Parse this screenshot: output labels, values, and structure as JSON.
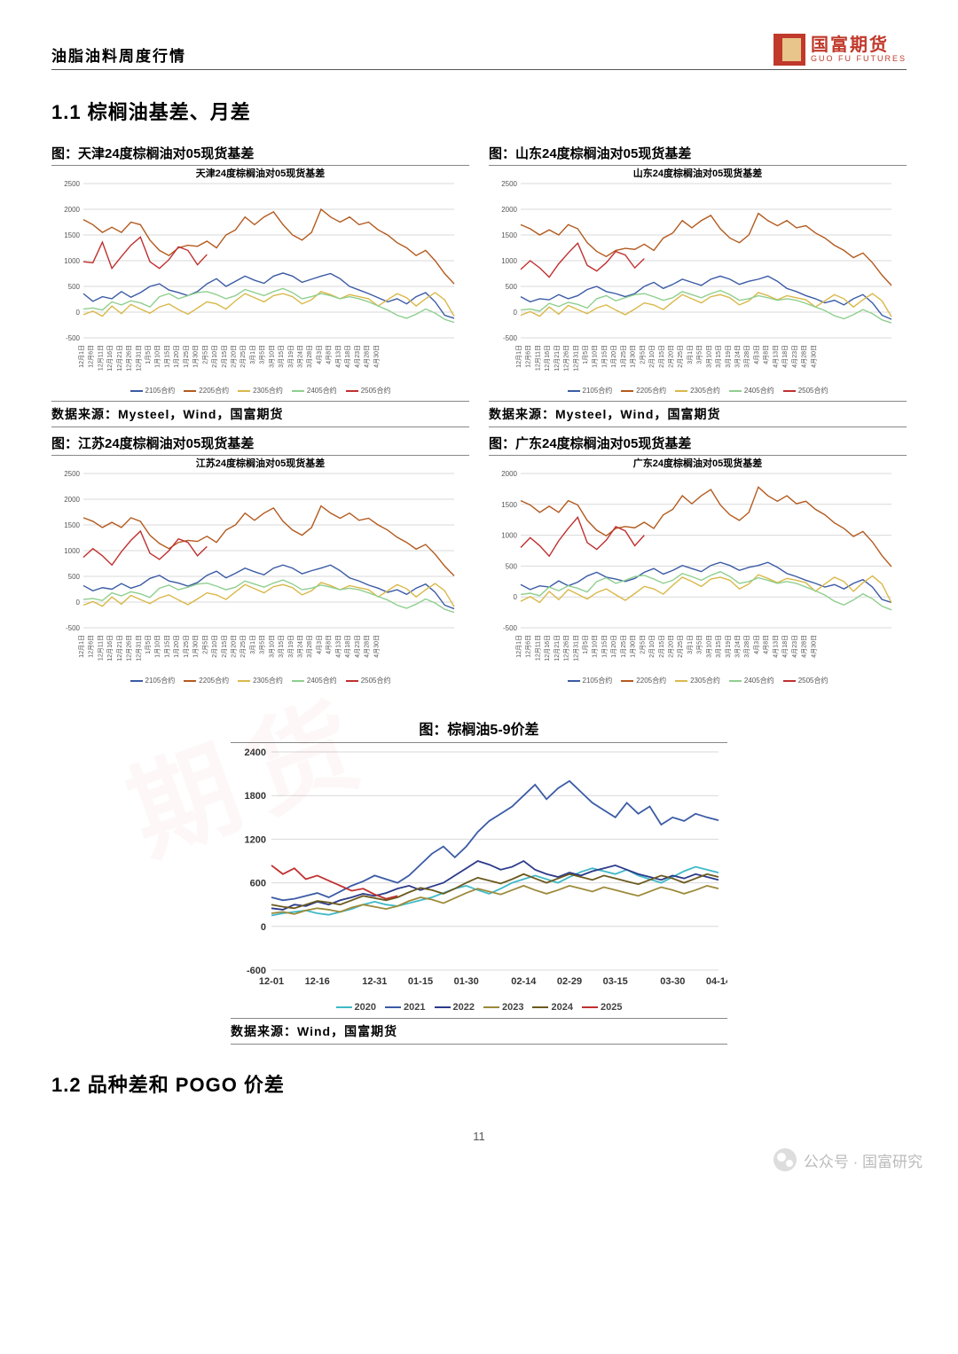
{
  "header": {
    "doc_title": "油脂油料周度行情",
    "logo_cn": "国富期货",
    "logo_en": "GUO FU FUTURES",
    "logo_colors": {
      "red": "#c0392b",
      "tan": "#e8c58a"
    }
  },
  "section1": {
    "heading": "1.1 棕榈油基差、月差"
  },
  "section2": {
    "heading": "1.2 品种差和 POGO 价差"
  },
  "page_number": "11",
  "footer_brand": "公众号 · 国富研究",
  "basis_common": {
    "type": "line",
    "ylim": [
      -500,
      2500
    ],
    "ystep": 500,
    "x_count": 40,
    "x_labels_sample": [
      "12月1日",
      "12月6日",
      "12月11日",
      "12月16日",
      "12月21日",
      "12月26日",
      "12月31日",
      "1月5日",
      "1月10日",
      "1月15日",
      "1月20日",
      "1月25日",
      "1月30日",
      "2月5日",
      "2月10日",
      "2月15日",
      "2月20日",
      "2月25日",
      "3月1日",
      "3月5日",
      "3月10日",
      "3月15日",
      "3月19日",
      "3月24日",
      "3月28日",
      "4月3日",
      "4月8日",
      "4月13日",
      "4月18日",
      "4月23日",
      "4月28日",
      "4月30日",
      "",
      "",
      "",
      "",
      "",
      "",
      "",
      ""
    ],
    "legend": [
      {
        "label": "2105合约",
        "color": "#3b5ba5"
      },
      {
        "label": "2205合约",
        "color": "#b35a1e"
      },
      {
        "label": "2305合约",
        "color": "#d9b84a"
      },
      {
        "label": "2405合约",
        "color": "#8fcf8f"
      },
      {
        "label": "2505合约",
        "color": "#c03030"
      }
    ],
    "grid_color": "#d9d9d9",
    "background": "#ffffff",
    "line_width": 1.4,
    "title_fontsize": 11,
    "source": "数据来源：Mysteel，Wind，国富期货"
  },
  "charts": {
    "tianjin": {
      "caption": "图：天津24度棕榈油对05现货基差",
      "inner_title": "天津24度棕榈油对05现货基差",
      "series": {
        "2105": [
          360,
          210,
          300,
          260,
          400,
          290,
          380,
          500,
          550,
          430,
          380,
          320,
          400,
          550,
          650,
          500,
          600,
          700,
          620,
          560,
          700,
          760,
          700,
          580,
          640,
          700,
          750,
          650,
          500,
          430,
          360,
          280,
          200,
          260,
          160,
          300,
          380,
          200,
          -60,
          -120
        ],
        "2205": [
          1800,
          1700,
          1550,
          1650,
          1550,
          1750,
          1700,
          1400,
          1200,
          1100,
          1250,
          1300,
          1280,
          1380,
          1250,
          1500,
          1600,
          1850,
          1700,
          1850,
          1950,
          1700,
          1500,
          1400,
          1550,
          2000,
          1850,
          1750,
          1850,
          1700,
          1750,
          1600,
          1500,
          1350,
          1250,
          1100,
          1200,
          1000,
          750,
          550
        ],
        "2305": [
          -50,
          20,
          -80,
          120,
          -30,
          150,
          60,
          -20,
          100,
          160,
          50,
          -40,
          80,
          200,
          160,
          60,
          220,
          360,
          280,
          200,
          320,
          360,
          300,
          160,
          240,
          400,
          340,
          260,
          340,
          300,
          260,
          120,
          240,
          360,
          280,
          120,
          260,
          380,
          240,
          -80
        ],
        "2405": [
          60,
          80,
          40,
          200,
          140,
          220,
          180,
          100,
          300,
          360,
          260,
          320,
          380,
          400,
          340,
          260,
          320,
          440,
          380,
          320,
          400,
          460,
          380,
          260,
          300,
          360,
          320,
          260,
          300,
          260,
          200,
          120,
          40,
          -60,
          -120,
          -40,
          60,
          -20,
          -140,
          -200
        ],
        "2505": [
          980,
          960,
          1360,
          850,
          1080,
          1300,
          1460,
          980,
          850,
          1020,
          1270,
          1200,
          920,
          1120
        ]
      }
    },
    "shandong": {
      "caption": "图：山东24度棕榈油对05现货基差",
      "inner_title": "山东24度棕榈油对05现货基差",
      "series": {
        "2105": [
          300,
          200,
          260,
          240,
          340,
          260,
          320,
          440,
          500,
          400,
          360,
          300,
          360,
          500,
          580,
          460,
          540,
          640,
          580,
          520,
          640,
          700,
          640,
          540,
          600,
          640,
          700,
          600,
          460,
          400,
          320,
          260,
          180,
          230,
          140,
          260,
          340,
          180,
          -60,
          -140
        ],
        "2205": [
          1700,
          1620,
          1500,
          1600,
          1500,
          1700,
          1620,
          1350,
          1180,
          1080,
          1200,
          1240,
          1220,
          1320,
          1200,
          1440,
          1540,
          1780,
          1640,
          1780,
          1880,
          1620,
          1440,
          1350,
          1500,
          1920,
          1780,
          1680,
          1780,
          1640,
          1680,
          1540,
          1440,
          1300,
          1200,
          1060,
          1150,
          960,
          720,
          520
        ],
        "2305": [
          -60,
          10,
          -80,
          100,
          -40,
          130,
          50,
          -30,
          80,
          140,
          40,
          -50,
          60,
          180,
          140,
          50,
          200,
          340,
          260,
          180,
          300,
          340,
          280,
          140,
          220,
          380,
          320,
          240,
          320,
          280,
          240,
          100,
          220,
          340,
          260,
          100,
          240,
          360,
          220,
          -90
        ],
        "2405": [
          40,
          60,
          20,
          170,
          110,
          190,
          150,
          80,
          260,
          320,
          220,
          280,
          340,
          360,
          300,
          230,
          280,
          400,
          340,
          280,
          360,
          420,
          340,
          230,
          260,
          320,
          280,
          230,
          260,
          230,
          170,
          100,
          30,
          -70,
          -130,
          -50,
          50,
          -30,
          -150,
          -210
        ],
        "2505": [
          830,
          1000,
          860,
          680,
          940,
          1150,
          1340,
          910,
          800,
          960,
          1180,
          1110,
          860,
          1040
        ]
      }
    },
    "jiangsu": {
      "caption": "图：江苏24度棕榈油对05现货基差",
      "inner_title": "江苏24度棕榈油对05现货基差",
      "series": {
        "2105": [
          320,
          220,
          280,
          250,
          360,
          270,
          330,
          460,
          520,
          410,
          370,
          310,
          380,
          520,
          600,
          470,
          560,
          660,
          590,
          530,
          660,
          720,
          660,
          550,
          610,
          660,
          720,
          610,
          470,
          410,
          330,
          270,
          190,
          240,
          150,
          270,
          350,
          190,
          -60,
          -130
        ],
        "2205": [
          1640,
          1570,
          1450,
          1550,
          1450,
          1640,
          1570,
          1300,
          1140,
          1040,
          1160,
          1200,
          1180,
          1280,
          1160,
          1400,
          1500,
          1730,
          1590,
          1730,
          1830,
          1570,
          1400,
          1300,
          1450,
          1870,
          1730,
          1630,
          1730,
          1590,
          1630,
          1500,
          1400,
          1260,
          1160,
          1030,
          1120,
          930,
          700,
          510
        ],
        "2305": [
          -60,
          10,
          -80,
          100,
          -40,
          130,
          50,
          -30,
          80,
          140,
          40,
          -50,
          60,
          180,
          140,
          50,
          200,
          340,
          260,
          180,
          300,
          340,
          280,
          140,
          220,
          380,
          320,
          240,
          320,
          280,
          240,
          100,
          220,
          340,
          260,
          100,
          240,
          360,
          220,
          -90
        ],
        "2405": [
          50,
          70,
          30,
          180,
          120,
          200,
          160,
          90,
          270,
          330,
          240,
          290,
          350,
          370,
          310,
          240,
          290,
          410,
          350,
          290,
          370,
          430,
          350,
          240,
          270,
          330,
          290,
          240,
          270,
          240,
          180,
          110,
          40,
          -60,
          -120,
          -40,
          60,
          -20,
          -140,
          -200
        ],
        "2505": [
          870,
          1040,
          900,
          720,
          980,
          1200,
          1380,
          950,
          830,
          1000,
          1230,
          1160,
          900,
          1080
        ]
      }
    },
    "guangdong": {
      "caption": "图：广东24度棕榈油对05现货基差",
      "inner_title": "广东24度棕榈油对05现货基差",
      "ylim_override": [
        -500,
        2000
      ],
      "series": {
        "2105": [
          200,
          120,
          180,
          160,
          260,
          180,
          240,
          340,
          400,
          320,
          290,
          250,
          300,
          400,
          460,
          370,
          430,
          510,
          460,
          410,
          510,
          560,
          510,
          430,
          480,
          510,
          560,
          480,
          380,
          330,
          270,
          220,
          160,
          200,
          130,
          220,
          280,
          160,
          -40,
          -90
        ],
        "2205": [
          1560,
          1490,
          1370,
          1470,
          1370,
          1560,
          1490,
          1240,
          1080,
          990,
          1110,
          1140,
          1120,
          1210,
          1110,
          1330,
          1420,
          1640,
          1510,
          1640,
          1740,
          1490,
          1330,
          1240,
          1370,
          1780,
          1640,
          1550,
          1640,
          1510,
          1550,
          1420,
          1330,
          1200,
          1110,
          980,
          1060,
          890,
          670,
          490
        ],
        "2305": [
          -70,
          5,
          -90,
          90,
          -45,
          120,
          45,
          -35,
          70,
          130,
          35,
          -55,
          55,
          170,
          130,
          45,
          190,
          320,
          250,
          170,
          290,
          320,
          270,
          130,
          210,
          360,
          300,
          230,
          300,
          270,
          230,
          90,
          210,
          320,
          250,
          90,
          230,
          340,
          210,
          -95
        ],
        "2405": [
          40,
          60,
          20,
          160,
          100,
          180,
          140,
          80,
          250,
          310,
          220,
          270,
          330,
          350,
          290,
          220,
          270,
          380,
          330,
          270,
          350,
          410,
          330,
          220,
          250,
          310,
          270,
          220,
          250,
          220,
          160,
          100,
          30,
          -70,
          -130,
          -50,
          50,
          -30,
          -150,
          -210
        ],
        "2505": [
          800,
          960,
          830,
          660,
          910,
          1110,
          1290,
          880,
          770,
          920,
          1140,
          1070,
          830,
          1000
        ]
      }
    }
  },
  "spread_chart": {
    "caption": "图：棕榈油5-9价差",
    "type": "line",
    "ylim": [
      -600,
      2400
    ],
    "ystep": 600,
    "x_labels": [
      "12-01",
      "12-16",
      "12-31",
      "01-15",
      "01-30",
      "02-14",
      "02-29",
      "03-15",
      "03-30",
      "04-14"
    ],
    "x_count": 40,
    "legend": [
      {
        "label": "2020",
        "color": "#3fb9c7"
      },
      {
        "label": "2021",
        "color": "#3b5ba5"
      },
      {
        "label": "2022",
        "color": "#2b3a8a"
      },
      {
        "label": "2023",
        "color": "#9c8a3a"
      },
      {
        "label": "2024",
        "color": "#6b5a1e"
      },
      {
        "label": "2025",
        "color": "#c03030"
      }
    ],
    "series": {
      "2020": [
        150,
        180,
        200,
        220,
        180,
        160,
        200,
        240,
        300,
        340,
        300,
        280,
        320,
        360,
        400,
        460,
        520,
        560,
        500,
        450,
        520,
        600,
        650,
        700,
        650,
        600,
        680,
        750,
        800,
        760,
        720,
        780,
        700,
        650,
        600,
        680,
        760,
        820,
        780,
        740
      ],
      "2021": [
        400,
        360,
        380,
        420,
        460,
        400,
        480,
        560,
        620,
        700,
        650,
        600,
        700,
        850,
        1000,
        1100,
        950,
        1100,
        1300,
        1450,
        1550,
        1650,
        1800,
        1950,
        1750,
        1900,
        2000,
        1850,
        1700,
        1600,
        1500,
        1700,
        1550,
        1650,
        1400,
        1500,
        1450,
        1550,
        1500,
        1460
      ],
      "2022": [
        250,
        230,
        300,
        280,
        340,
        300,
        360,
        400,
        450,
        420,
        460,
        520,
        560,
        500,
        550,
        600,
        700,
        800,
        900,
        850,
        780,
        820,
        900,
        780,
        720,
        680,
        740,
        700,
        760,
        800,
        840,
        780,
        720,
        680,
        640,
        700,
        660,
        720,
        680,
        640
      ],
      "2023": [
        180,
        200,
        170,
        220,
        250,
        230,
        200,
        260,
        300,
        270,
        240,
        280,
        350,
        400,
        370,
        320,
        390,
        460,
        520,
        480,
        440,
        500,
        560,
        500,
        450,
        500,
        560,
        520,
        480,
        540,
        500,
        460,
        420,
        480,
        540,
        500,
        450,
        500,
        560,
        520
      ],
      "2024": [
        300,
        270,
        250,
        300,
        350,
        330,
        300,
        360,
        420,
        390,
        360,
        400,
        470,
        530,
        500,
        450,
        520,
        600,
        670,
        630,
        590,
        650,
        720,
        660,
        600,
        660,
        720,
        680,
        640,
        700,
        660,
        620,
        580,
        640,
        700,
        660,
        600,
        660,
        720,
        680
      ],
      "2025": [
        840,
        720,
        800,
        650,
        700,
        630,
        560,
        490,
        520,
        440,
        380,
        420
      ]
    },
    "grid_color": "#d9d9d9",
    "background": "#ffffff",
    "line_width": 1.8,
    "source": "数据来源：Wind，国富期货",
    "font_weight_xlabels": "bold"
  }
}
